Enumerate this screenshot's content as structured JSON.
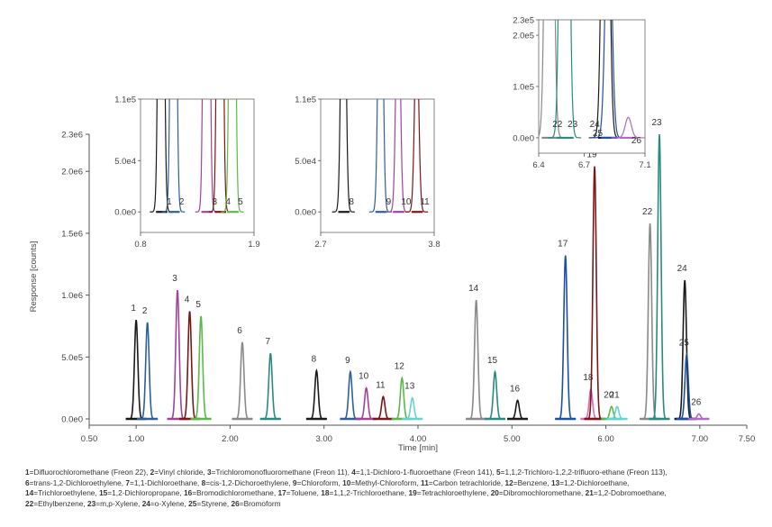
{
  "chart_data": [
    {
      "type": "line",
      "title": "",
      "xlabel": "Time [min]",
      "ylabel": "Response [counts]",
      "xlim": [
        0.5,
        7.5
      ],
      "ylim": [
        0,
        2300000
      ],
      "xticks": [
        "0.50",
        "1.00",
        "2.00",
        "3.00",
        "4.00",
        "5.00",
        "6.00",
        "7.00",
        "7.50"
      ],
      "xtick_values": [
        0.5,
        1,
        2,
        3,
        4,
        5,
        6,
        7,
        7.5
      ],
      "yticks": [
        "0.0e0",
        "5.0e5",
        "1.0e6",
        "1.5e6",
        "2.0e6",
        "2.3e6"
      ],
      "ytick_values": [
        0,
        500000,
        1000000,
        1500000,
        2000000,
        2300000
      ],
      "series": [
        {
          "name": "1",
          "rt": 1.0,
          "height": 800000,
          "color": "#1a1a1a"
        },
        {
          "name": "2",
          "rt": 1.12,
          "height": 780000,
          "color": "#2f5f95"
        },
        {
          "name": "3",
          "rt": 1.44,
          "height": 1040000,
          "color": "#a0439a"
        },
        {
          "name": "4",
          "rt": 1.57,
          "height": 870000,
          "color": "#7a1717"
        },
        {
          "name": "5",
          "rt": 1.69,
          "height": 830000,
          "color": "#5cb84a"
        },
        {
          "name": "6",
          "rt": 2.13,
          "height": 620000,
          "color": "#8a8a8a"
        },
        {
          "name": "7",
          "rt": 2.43,
          "height": 530000,
          "color": "#2a8a80"
        },
        {
          "name": "8",
          "rt": 2.92,
          "height": 390000,
          "color": "#1a1a1a"
        },
        {
          "name": "9",
          "rt": 3.28,
          "height": 380000,
          "color": "#2f5f95"
        },
        {
          "name": "10",
          "rt": 3.45,
          "height": 250000,
          "color": "#a0439a"
        },
        {
          "name": "11",
          "rt": 3.63,
          "height": 180000,
          "color": "#7a1717"
        },
        {
          "name": "12",
          "rt": 3.83,
          "height": 330000,
          "color": "#5cb84a"
        },
        {
          "name": "13",
          "rt": 3.94,
          "height": 170000,
          "color": "#67d1d4"
        },
        {
          "name": "14",
          "rt": 4.62,
          "height": 960000,
          "color": "#8a8a8a"
        },
        {
          "name": "15",
          "rt": 4.82,
          "height": 380000,
          "color": "#2a8a80"
        },
        {
          "name": "16",
          "rt": 5.06,
          "height": 150000,
          "color": "#1a1a1a"
        },
        {
          "name": "17",
          "rt": 5.57,
          "height": 1320000,
          "color": "#1f4fa0"
        },
        {
          "name": "18",
          "rt": 5.84,
          "height": 240000,
          "color": "#d46fb4"
        },
        {
          "name": "19",
          "rt": 5.88,
          "height": 2040000,
          "color": "#7a1717"
        },
        {
          "name": "20",
          "rt": 6.06,
          "height": 100000,
          "color": "#5cb84a"
        },
        {
          "name": "21",
          "rt": 6.12,
          "height": 100000,
          "color": "#67d1d4"
        },
        {
          "name": "22",
          "rt": 6.47,
          "height": 1580000,
          "color": "#8a8a8a"
        },
        {
          "name": "23",
          "rt": 6.57,
          "height": 2300000,
          "color": "#2a8a80"
        },
        {
          "name": "24",
          "rt": 6.84,
          "height": 1120000,
          "color": "#1a1a1a"
        },
        {
          "name": "25",
          "rt": 6.86,
          "height": 520000,
          "color": "#1f4fa0"
        },
        {
          "name": "26",
          "rt": 6.99,
          "height": 40000,
          "color": "#b06ac0"
        }
      ]
    },
    {
      "type": "line",
      "title": "inset",
      "xlim": [
        0.8,
        1.9
      ],
      "ylim": [
        -20000,
        110000
      ],
      "xticks": [
        "0.8",
        "1.9"
      ],
      "yticks": [
        "0.0e0",
        "5.0e4",
        "1.1e5"
      ],
      "ytick_values": [
        0,
        50000,
        110000
      ],
      "series": [
        {
          "name": "1",
          "rt": 1.0,
          "height": 800000,
          "color": "#1a1a1a"
        },
        {
          "name": "2",
          "rt": 1.12,
          "height": 780000,
          "color": "#2f5f95"
        },
        {
          "name": "3",
          "rt": 1.44,
          "height": 1040000,
          "color": "#a0439a"
        },
        {
          "name": "4",
          "rt": 1.57,
          "height": 870000,
          "color": "#7a1717"
        },
        {
          "name": "5",
          "rt": 1.69,
          "height": 830000,
          "color": "#5cb84a"
        }
      ]
    },
    {
      "type": "line",
      "title": "inset",
      "xlim": [
        2.7,
        3.8
      ],
      "ylim": [
        -20000,
        110000
      ],
      "xticks": [
        "2.7",
        "3.8"
      ],
      "yticks": [
        "0.0e0",
        "5.0e4",
        "1.1e5"
      ],
      "ytick_values": [
        0,
        50000,
        110000
      ],
      "series": [
        {
          "name": "8",
          "rt": 2.92,
          "height": 390000,
          "color": "#1a1a1a"
        },
        {
          "name": "9",
          "rt": 3.28,
          "height": 380000,
          "color": "#2f5f95"
        },
        {
          "name": "10",
          "rt": 3.45,
          "height": 250000,
          "color": "#a0439a"
        },
        {
          "name": "11",
          "rt": 3.63,
          "height": 180000,
          "color": "#7a1717"
        }
      ]
    },
    {
      "type": "line",
      "title": "inset",
      "xlim": [
        6.4,
        7.1
      ],
      "ylim": [
        -30000,
        230000
      ],
      "xticks": [
        "6.4",
        "6.7",
        "7.1"
      ],
      "yticks": [
        "0.0e0",
        "1.0e5",
        "2.0e5",
        "2.3e5"
      ],
      "ytick_values": [
        0,
        100000,
        200000,
        230000
      ],
      "series": [
        {
          "name": "22",
          "rt": 6.47,
          "height": 1580000,
          "color": "#8a8a8a"
        },
        {
          "name": "23",
          "rt": 6.57,
          "height": 2300000,
          "color": "#2a8a80"
        },
        {
          "name": "24",
          "rt": 6.84,
          "height": 1120000,
          "color": "#1a1a1a"
        },
        {
          "name": "25",
          "rt": 6.86,
          "height": 520000,
          "color": "#1f4fa0"
        },
        {
          "name": "26",
          "rt": 6.99,
          "height": 40000,
          "color": "#b06ac0"
        }
      ]
    }
  ],
  "legend": [
    {
      "num": "1",
      "name": "Difluorochloromethane (Freon 22)"
    },
    {
      "num": "2",
      "name": "Vinyl chloride"
    },
    {
      "num": "3",
      "name": "Trichloromonofluoromethane (Freon 11)"
    },
    {
      "num": "4",
      "name": "1,1-Dichloro-1-fluoroethane (Freon 141)"
    },
    {
      "num": "5",
      "name": "1,1,2-Trichloro-1,2,2-trifluoro-ethane (Freon 113),"
    },
    {
      "num": "6",
      "name": "trans-1,2-Dichloroethylene"
    },
    {
      "num": "7",
      "name": "1,1-Dichloroethane"
    },
    {
      "num": "8",
      "name": "cis-1,2-Dichoroethylene"
    },
    {
      "num": "9",
      "name": "Chloroform"
    },
    {
      "num": "10",
      "name": "Methyl-Chloroform"
    },
    {
      "num": "11",
      "name": "Carbon tetrachloride"
    },
    {
      "num": "12",
      "name": "Benzene"
    },
    {
      "num": "13",
      "name": "1,2-Dichloroethane,"
    },
    {
      "num": "14",
      "name": "Trichloroethylene"
    },
    {
      "num": "15",
      "name": "1,2-Dichloropropane"
    },
    {
      "num": "16",
      "name": "Bromodichloromethane"
    },
    {
      "num": "17",
      "name": "Toluene"
    },
    {
      "num": "18",
      "name": "1,1,2-Trichloroethane"
    },
    {
      "num": "19",
      "name": "Tetrachloroethylene"
    },
    {
      "num": "20",
      "name": "Dibromochloromethane"
    },
    {
      "num": "21",
      "name": "1,2-Dobromoethane,"
    },
    {
      "num": "22",
      "name": "Ethylbenzene"
    },
    {
      "num": "23",
      "name": "m,p-Xylene"
    },
    {
      "num": "24",
      "name": "o-Xylene"
    },
    {
      "num": "25",
      "name": "Styrene"
    },
    {
      "num": "26",
      "name": "Bromoform"
    }
  ]
}
